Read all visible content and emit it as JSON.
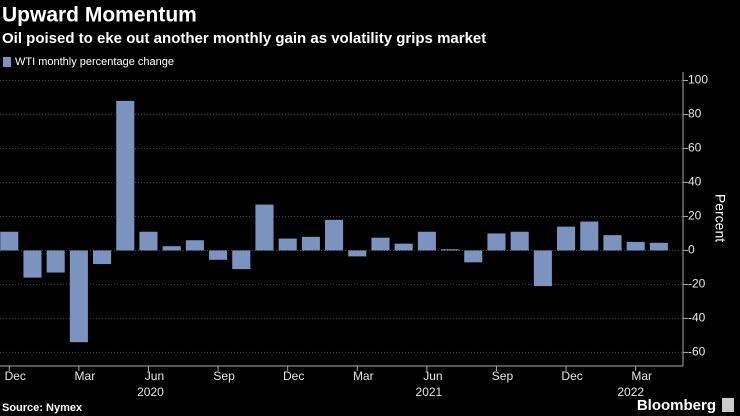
{
  "chart_data": {
    "type": "bar",
    "title": "Upward Momentum",
    "subtitle": "Oil poised to eke out another monthly gain as volatility grips market",
    "y_label": "Percent",
    "source": "Source: Nymex",
    "brand": "Bloomberg",
    "categories": [
      "Dec",
      null,
      null,
      "Mar",
      null,
      null,
      "Jun",
      null,
      null,
      "Sep",
      null,
      null,
      "Dec",
      null,
      null,
      "Mar",
      null,
      null,
      "Jun",
      null,
      null,
      "Sep",
      null,
      null,
      "Dec",
      null,
      null,
      "Mar",
      null
    ],
    "x_group_labels": [
      "2020",
      "2021",
      "2022"
    ],
    "series": [
      {
        "name": "WTI monthly percentage change",
        "color": "#7b93bf",
        "values": [
          11,
          -16,
          -13,
          -54,
          -8,
          88,
          11,
          2.5,
          6,
          -5.5,
          -11,
          27,
          7,
          8,
          18,
          -3.5,
          7.5,
          4,
          11,
          0.7,
          -7,
          10,
          11,
          -21,
          14,
          17,
          9,
          5,
          4.5
        ]
      }
    ],
    "ylim": [
      -68,
      105
    ],
    "yticks": [
      -60,
      -40,
      -20,
      0,
      20,
      40,
      60,
      80,
      100
    ],
    "grid": true
  }
}
